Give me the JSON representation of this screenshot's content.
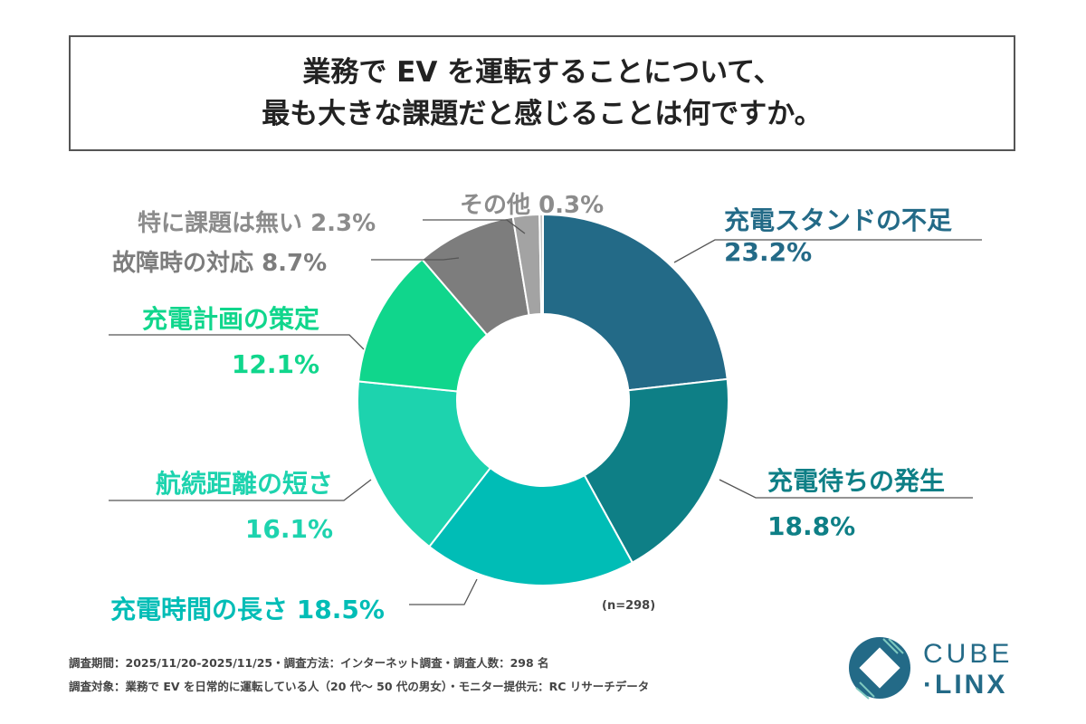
{
  "title": {
    "line1": "業務で EV を運転することについて、",
    "line2": "最も大きな課題だと感じることは何ですか。"
  },
  "chart_data": {
    "type": "pie",
    "donut": true,
    "categories": [
      "充電スタンドの不足",
      "充電待ちの発生",
      "充電時間の長さ",
      "航続距離の短さ",
      "充電計画の策定",
      "故障時の対応",
      "特に課題は無い",
      "その他"
    ],
    "values": [
      23.2,
      18.8,
      18.5,
      16.1,
      12.1,
      8.7,
      2.3,
      0.3
    ],
    "value_labels": [
      "23.2%",
      "18.8%",
      "18.5%",
      "16.1%",
      "12.1%",
      "8.7%",
      "2.3%",
      "0.3%"
    ],
    "colors": [
      "#236a87",
      "#0e7f86",
      "#00bdb6",
      "#1dd3ae",
      "#10d68c",
      "#7d7d7d",
      "#a3a3a3",
      "#c4c4c4"
    ],
    "start": "top",
    "direction": "clockwise",
    "note": "(n=298)"
  },
  "footer": {
    "line1": "調査期間：2025/11/20-2025/11/25・調査方法：インターネット調査・調査人数：298 名",
    "line2": "調査対象：業務で EV を日常的に運転している人（20 代～ 50 代の男女）・モニター提供元：RC リサーチデータ"
  },
  "logo": {
    "text1": "CUBE",
    "text2": "LINX",
    "color": "#236a87"
  }
}
